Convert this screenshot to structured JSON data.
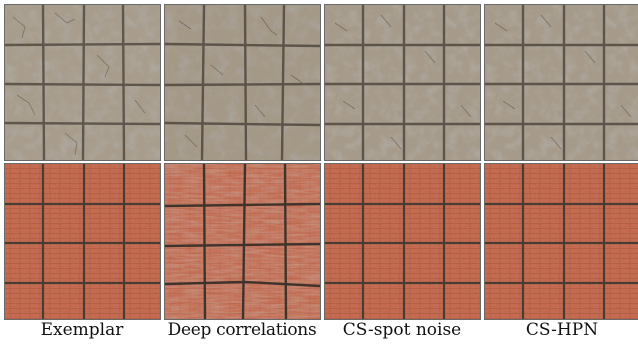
{
  "figure": {
    "rows": [
      {
        "texture": "stone-tile",
        "colors": {
          "base": "#a59a8a",
          "light": "#bdb3a2",
          "dark": "#6f6558",
          "grout": "#5c544a"
        }
      },
      {
        "texture": "red-brick",
        "colors": {
          "base": "#c0654a",
          "light": "#d27c5e",
          "dark": "#8d4431",
          "grout": "#4a3a32"
        }
      }
    ],
    "columns": [
      {
        "label": "Exemplar"
      },
      {
        "label": "Deep correlations"
      },
      {
        "label": "CS-spot noise"
      },
      {
        "label": "CS-HPN"
      }
    ]
  }
}
